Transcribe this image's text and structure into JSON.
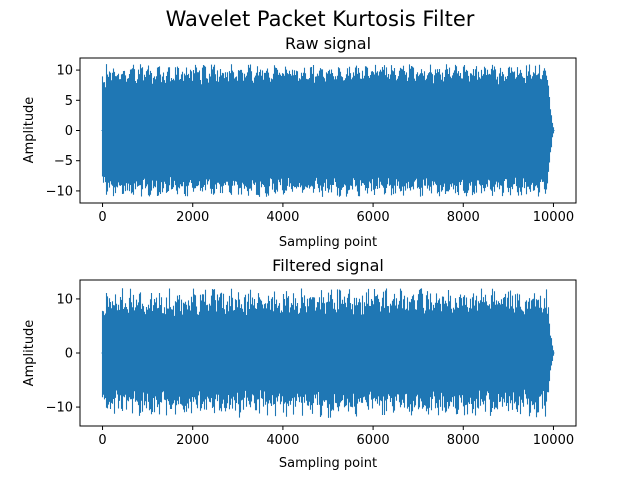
{
  "figure": {
    "suptitle": "Wavelet Packet Kurtosis Filter"
  },
  "chart_data": [
    {
      "type": "line",
      "title": "Raw signal",
      "xlabel": "Sampling point",
      "ylabel": "Amplitude",
      "xlim": [
        -500,
        10500
      ],
      "ylim": [
        -12,
        12
      ],
      "xticks": [
        0,
        2000,
        4000,
        6000,
        8000,
        10000
      ],
      "yticks": [
        -10,
        -5,
        0,
        5,
        10
      ],
      "series_color": "#1f77b4",
      "n_points": 10000,
      "signal": {
        "x_start": 0,
        "x_end": 10000,
        "amplitude_min": -11,
        "amplitude_max": 11,
        "peak_min": 9,
        "peak_max": 11,
        "impulse_period": 200,
        "tail_start": 9850
      }
    },
    {
      "type": "line",
      "title": "Filtered signal",
      "xlabel": "Sampling point",
      "ylabel": "Amplitude",
      "xlim": [
        -500,
        10500
      ],
      "ylim": [
        -13.5,
        13.5
      ],
      "xticks": [
        0,
        2000,
        4000,
        6000,
        8000,
        10000
      ],
      "yticks": [
        -10,
        0,
        10
      ],
      "series_color": "#1f77b4",
      "n_points": 10000,
      "signal": {
        "x_start": 0,
        "x_end": 10000,
        "amplitude_min": -12,
        "amplitude_max": 12,
        "peak_min": 8,
        "peak_max": 12,
        "impulse_period": 200,
        "tail_start": 9850
      }
    }
  ]
}
